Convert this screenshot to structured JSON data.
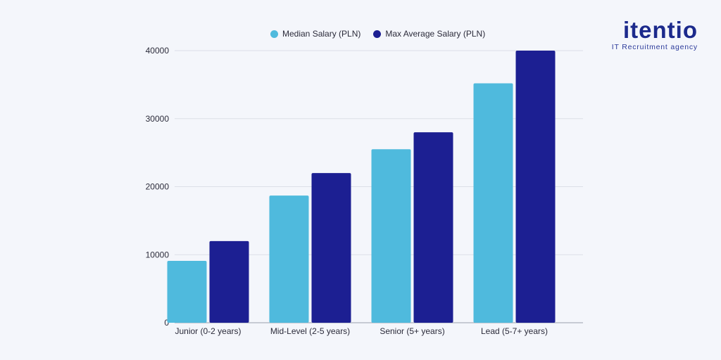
{
  "brand": {
    "name": "itentio",
    "tagline": "IT Recruitment agency"
  },
  "chart_data": {
    "type": "bar",
    "title": "",
    "xlabel": "",
    "ylabel": "",
    "categories": [
      "Junior (0-2 years)",
      "Mid-Level (2-5 years)",
      "Senior (5+ years)",
      "Lead (5-7+ years)"
    ],
    "series": [
      {
        "name": "Median Salary (PLN)",
        "color": "#4fbadd",
        "values": [
          9100,
          18700,
          25500,
          35200
        ]
      },
      {
        "name": "Max Average Salary (PLN)",
        "color": "#1c1f92",
        "values": [
          12000,
          22000,
          28000,
          40000
        ]
      }
    ],
    "ylim": [
      0,
      40000
    ],
    "yticks": [
      "0",
      "10000",
      "20000",
      "30000",
      "40000"
    ],
    "grid": true,
    "legend": "top"
  }
}
